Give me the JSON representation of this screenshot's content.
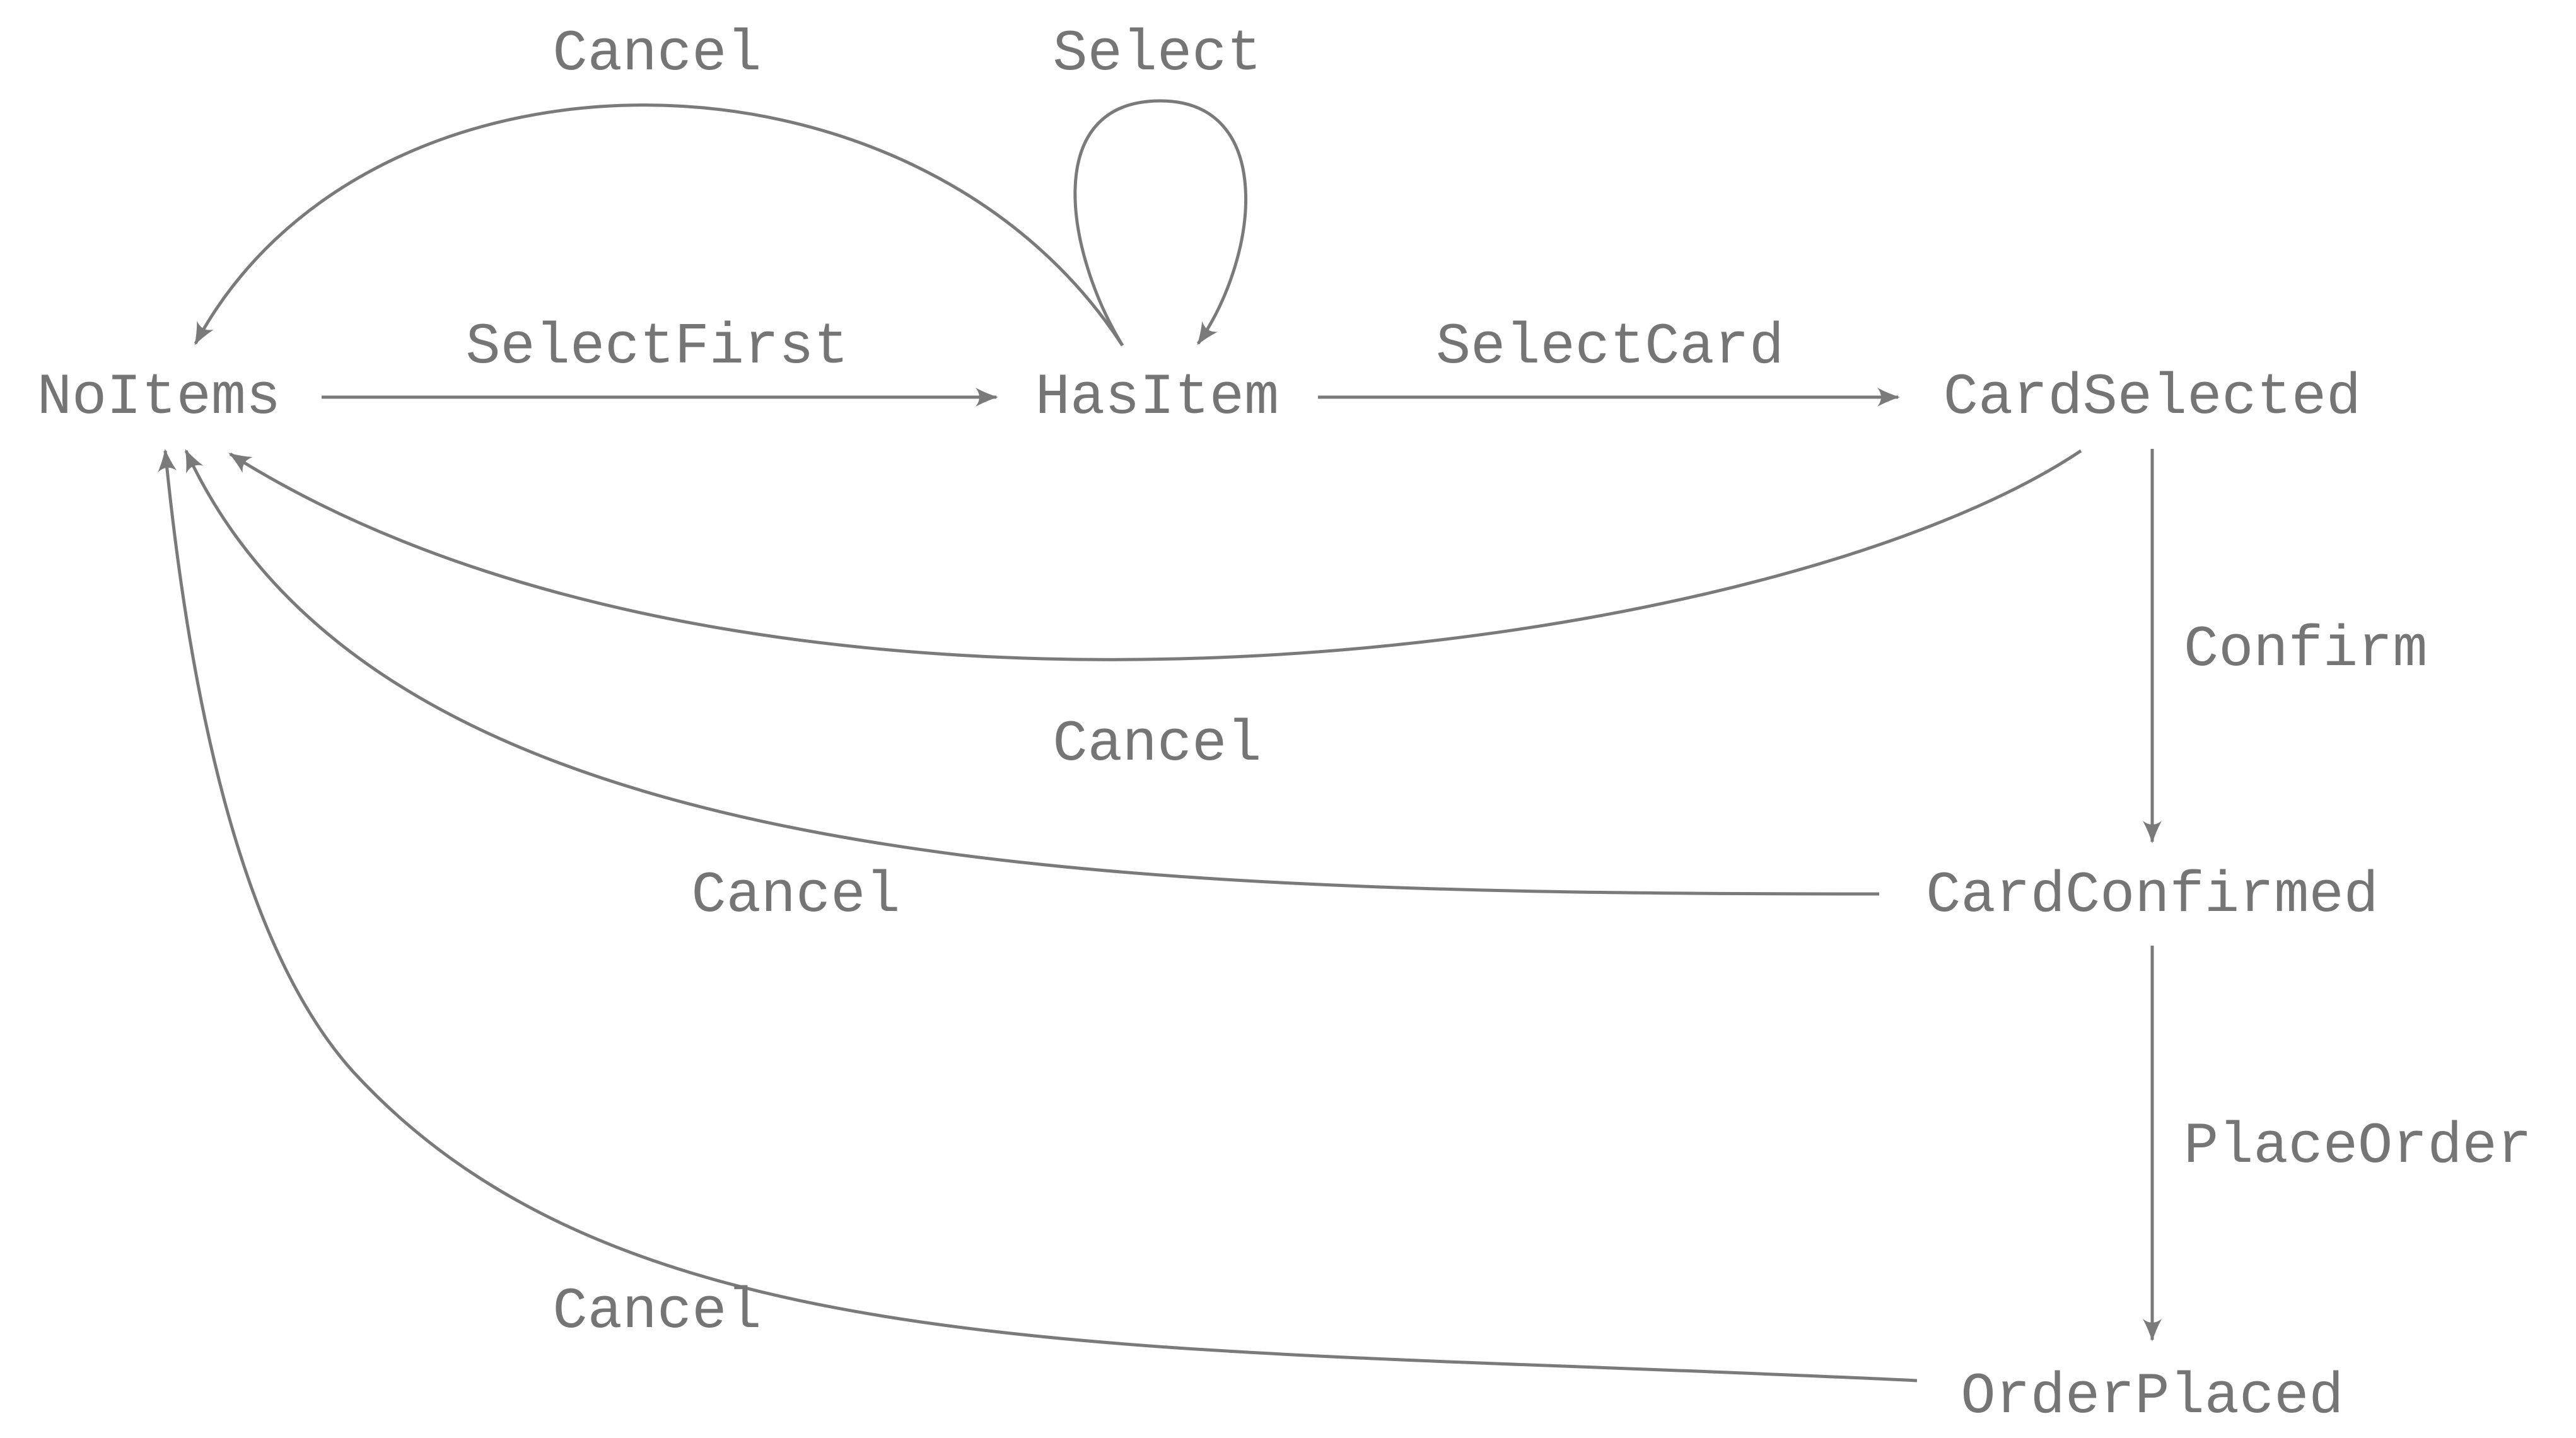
{
  "colors": {
    "background": "#ffffff",
    "ink": "#757575",
    "edge": "#7a7a7a"
  },
  "states": {
    "no_items": "NoItems",
    "has_item": "HasItem",
    "card_selected": "CardSelected",
    "card_confirmed": "CardConfirmed",
    "order_placed": "OrderPlaced"
  },
  "transitions": {
    "select_first": "SelectFirst",
    "select": "Select",
    "select_card": "SelectCard",
    "confirm": "Confirm",
    "place_order": "PlaceOrder",
    "cancel_from_has_item": "Cancel",
    "cancel_from_card_selected": "Cancel",
    "cancel_from_card_confirmed": "Cancel",
    "cancel_from_order_placed": "Cancel"
  }
}
